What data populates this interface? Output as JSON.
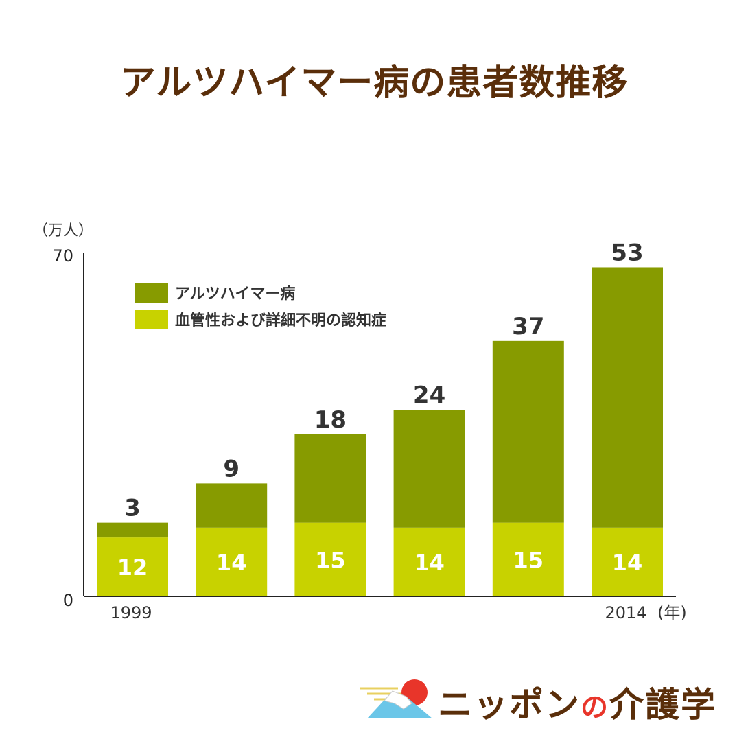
{
  "title": "アルツハイマー病の患者数推移",
  "logo": {
    "part1": "ニッポン",
    "part2": "の",
    "part3": "介護学"
  },
  "colors": {
    "alzheimer": "#879b00",
    "vascular": "#c8d200",
    "title": "#5a2e0a",
    "axis": "#222222",
    "label": "#333333"
  },
  "chart_data": {
    "type": "bar",
    "stacked": true,
    "categories": [
      "1999",
      "",
      "",
      "",
      "",
      "2014"
    ],
    "x_tick_labels": [
      "1999",
      "2014"
    ],
    "x_unit": "(年)",
    "y_unit": "（万人）",
    "ylim": [
      0,
      70
    ],
    "y_ticks": [
      "0",
      "70"
    ],
    "series": [
      {
        "name": "血管性および詳細不明の認知症",
        "values": [
          12,
          14,
          15,
          14,
          15,
          14
        ]
      },
      {
        "name": "アルツハイマー病",
        "values": [
          3,
          9,
          18,
          24,
          37,
          53
        ]
      }
    ],
    "legend_position": "top-left",
    "grid": false
  }
}
